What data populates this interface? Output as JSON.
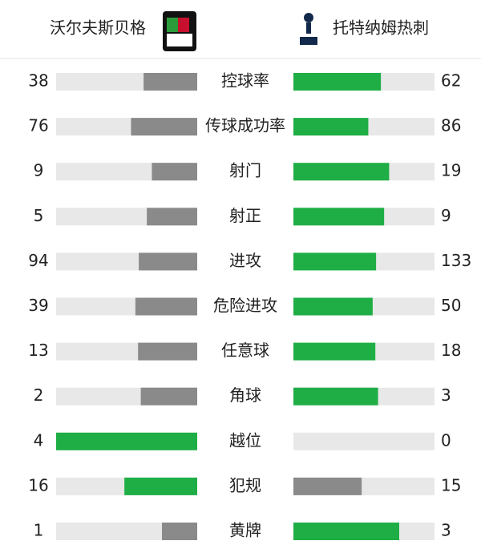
{
  "header": {
    "home_team": "沃尔夫斯贝格",
    "away_team": "托特纳姆热刺"
  },
  "stats": [
    {
      "label": "控球率",
      "home": 38,
      "away": 62
    },
    {
      "label": "传球成功率",
      "home": 76,
      "away": 86
    },
    {
      "label": "射门",
      "home": 9,
      "away": 19
    },
    {
      "label": "射正",
      "home": 5,
      "away": 9
    },
    {
      "label": "进攻",
      "home": 94,
      "away": 133
    },
    {
      "label": "危险进攻",
      "home": 39,
      "away": 50
    },
    {
      "label": "任意球",
      "home": 13,
      "away": 18
    },
    {
      "label": "角球",
      "home": 2,
      "away": 3
    },
    {
      "label": "越位",
      "home": 4,
      "away": 0
    },
    {
      "label": "犯规",
      "home": 16,
      "away": 15
    },
    {
      "label": "黄牌",
      "home": 1,
      "away": 3
    }
  ]
}
